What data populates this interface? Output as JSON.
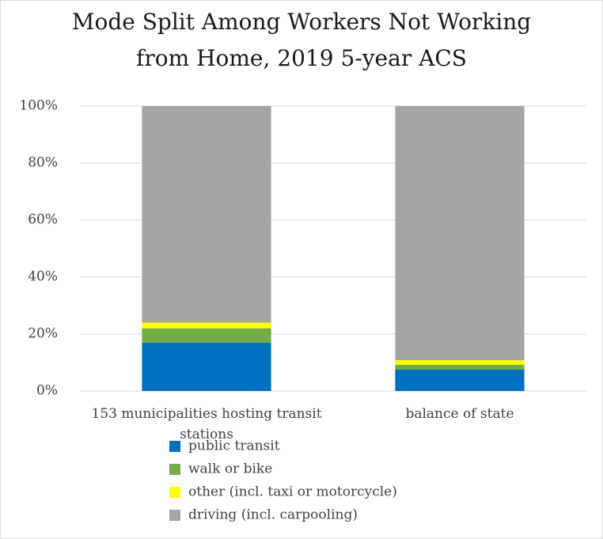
{
  "chart_data": {
    "type": "stacked_bar",
    "title": "Mode Split Among Workers Not Working from Home, 2019 5-year ACS",
    "categories": [
      "153 municipalities hosting transit stations",
      "balance of state"
    ],
    "series": [
      {
        "name": "public transit",
        "color": "#0070c0",
        "values": [
          17,
          7.5
        ]
      },
      {
        "name": "walk or bike",
        "color": "#70ad47",
        "values": [
          5,
          1.7
        ]
      },
      {
        "name": "other (incl. taxi or motorcycle)",
        "color": "#ffff00",
        "values": [
          2,
          1.6
        ]
      },
      {
        "name": "driving (incl. carpooling)",
        "color": "#a5a5a5",
        "values": [
          76,
          89.2
        ]
      }
    ],
    "ylim": [
      0,
      100
    ],
    "yticks": [
      {
        "value": 0,
        "label": "0%"
      },
      {
        "value": 20,
        "label": "20%"
      },
      {
        "value": 40,
        "label": "40%"
      },
      {
        "value": 60,
        "label": "60%"
      },
      {
        "value": 80,
        "label": "80%"
      },
      {
        "value": 100,
        "label": "100%"
      }
    ],
    "grid": true
  }
}
